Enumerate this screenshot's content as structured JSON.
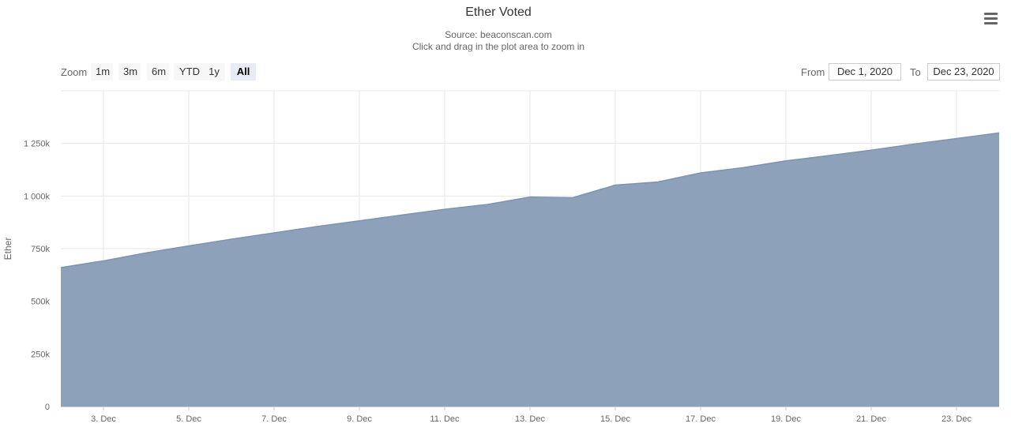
{
  "header": {
    "title": "Ether Voted",
    "subtitle_source": "Source: beaconscan.com",
    "subtitle_hint": "Click and drag in the plot area to zoom in",
    "menu_icon": "hamburger-menu-icon"
  },
  "range_selector": {
    "zoom_label": "Zoom",
    "buttons": [
      "1m",
      "3m",
      "6m",
      "YTD",
      "1y",
      "All"
    ],
    "active": "All",
    "from_label": "From",
    "from_value": "Dec 1, 2020",
    "to_label": "To",
    "to_value": "Dec 23, 2020"
  },
  "colors": {
    "area_fill": "#8ea1bb",
    "area_line": "#7f93b0",
    "grid": "#e6e6e6"
  },
  "chart_data": {
    "type": "area",
    "title": "Ether Voted",
    "subtitle": "Source: beaconscan.com",
    "ylabel": "Ether",
    "xlabel": "",
    "x_tick_labels": [
      "3. Dec",
      "5. Dec",
      "7. Dec",
      "9. Dec",
      "11. Dec",
      "13. Dec",
      "15. Dec",
      "17. Dec",
      "19. Dec",
      "21. Dec",
      "23. Dec"
    ],
    "y_tick_labels": [
      "0",
      "250k",
      "500k",
      "750k",
      "1 000k",
      "1 250k"
    ],
    "y_ticks": [
      0,
      250000,
      500000,
      750000,
      1000000,
      1250000
    ],
    "ylim": [
      0,
      1500000
    ],
    "xlim": [
      "2020-12-02",
      "2020-12-24"
    ],
    "grid": true,
    "legend": false,
    "series": [
      {
        "x": [
          "2020-12-02",
          "2020-12-03",
          "2020-12-04",
          "2020-12-05",
          "2020-12-06",
          "2020-12-07",
          "2020-12-08",
          "2020-12-09",
          "2020-12-10",
          "2020-12-11",
          "2020-12-12",
          "2020-12-13",
          "2020-12-14",
          "2020-12-15",
          "2020-12-16",
          "2020-12-17",
          "2020-12-18",
          "2020-12-19",
          "2020-12-20",
          "2020-12-21",
          "2020-12-22",
          "2020-12-23",
          "2020-12-24"
        ],
        "values": [
          660000,
          692000,
          730000,
          763000,
          795000,
          825000,
          855000,
          882000,
          910000,
          937000,
          960000,
          995000,
          992000,
          1052000,
          1067000,
          1110000,
          1135000,
          1167000,
          1192000,
          1218000,
          1247000,
          1273000,
          1300000
        ]
      }
    ]
  }
}
